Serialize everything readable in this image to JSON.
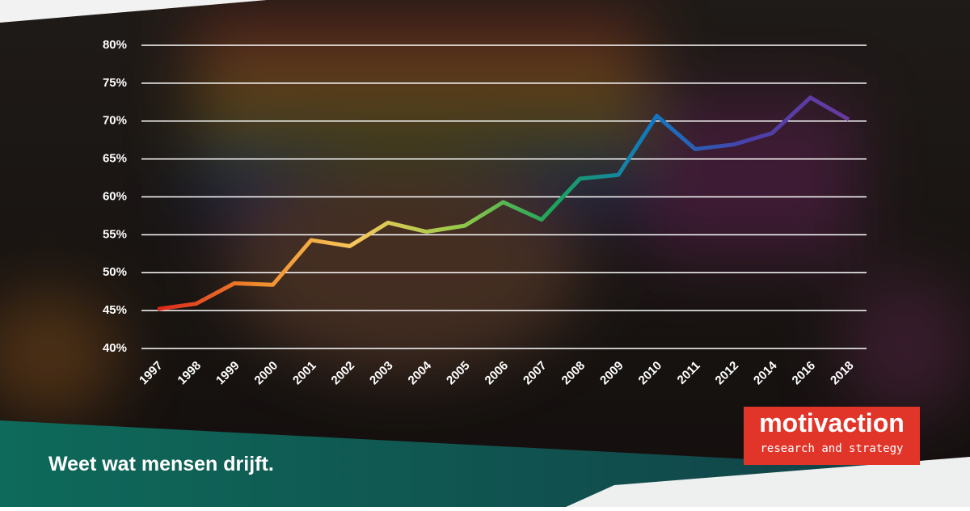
{
  "chart_data": {
    "type": "line",
    "categories": [
      "1997",
      "1998",
      "1999",
      "2000",
      "2001",
      "2002",
      "2003",
      "2004",
      "2005",
      "2006",
      "2007",
      "2008",
      "2009",
      "2010",
      "2011",
      "2012",
      "2014",
      "2016",
      "2018"
    ],
    "values": [
      45.2,
      45.9,
      48.6,
      48.4,
      54.3,
      53.5,
      56.6,
      55.4,
      56.2,
      59.3,
      57.0,
      62.4,
      62.9,
      70.7,
      66.3,
      66.9,
      68.4,
      73.1,
      70.2
    ],
    "line_colors": [
      "#d9261c",
      "#f08a2a",
      "#f7c85a",
      "#9ccb4a",
      "#1aa35a",
      "#1177c0",
      "#4a3fa8",
      "#6a3aa0"
    ],
    "ylim": [
      40,
      80
    ],
    "yticks": [
      {
        "value": 40,
        "label": "40%"
      },
      {
        "value": 45,
        "label": "45%"
      },
      {
        "value": 50,
        "label": "50%"
      },
      {
        "value": 55,
        "label": "55%"
      },
      {
        "value": 60,
        "label": "60%"
      },
      {
        "value": 65,
        "label": "65%"
      },
      {
        "value": 70,
        "label": "70%"
      },
      {
        "value": 75,
        "label": "75%"
      },
      {
        "value": 80,
        "label": "80%"
      }
    ],
    "grid": true
  },
  "footer": {
    "tagline": "Weet wat mensen drijft.",
    "logo": {
      "name": "motivaction",
      "subtitle": "research and strategy"
    }
  }
}
